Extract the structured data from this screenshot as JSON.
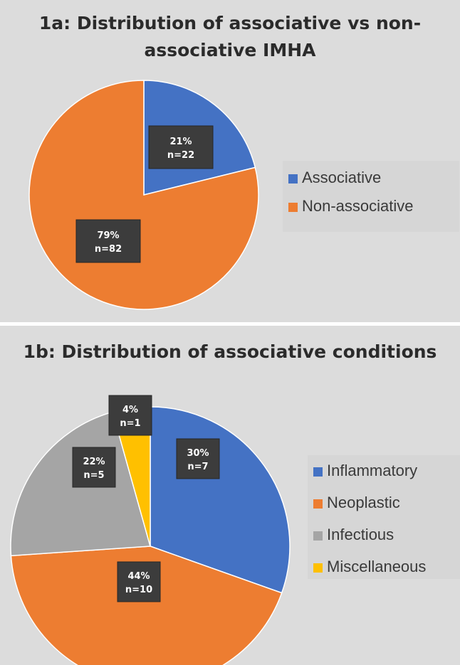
{
  "chart_data": [
    {
      "type": "pie",
      "title": "1a: Distribution of associative vs non-associative IMHA",
      "title_lines": [
        "1a: Distribution of associative vs non-",
        "associative IMHA"
      ],
      "categories": [
        "Associative",
        "Non-associative"
      ],
      "values": [
        22,
        82
      ],
      "percent_labels": [
        "21%",
        "79%"
      ],
      "count_labels": [
        "n=22",
        "n=82"
      ],
      "colors": [
        "#4472c4",
        "#ed7d31"
      ],
      "legend_position": "right"
    },
    {
      "type": "pie",
      "title": "1b: Distribution of associative conditions",
      "title_lines": [
        "1b: Distribution of associative conditions"
      ],
      "categories": [
        "Inflammatory",
        "Neoplastic",
        "Infectious",
        "Miscellaneous"
      ],
      "values": [
        7,
        10,
        5,
        1
      ],
      "percent_labels": [
        "30%",
        "44%",
        "22%",
        "4%"
      ],
      "count_labels": [
        "n=7",
        "n=10",
        "n=5",
        "n=1"
      ],
      "colors": [
        "#4472c4",
        "#ed7d31",
        "#a5a5a5",
        "#ffc000"
      ],
      "legend_position": "right"
    }
  ]
}
